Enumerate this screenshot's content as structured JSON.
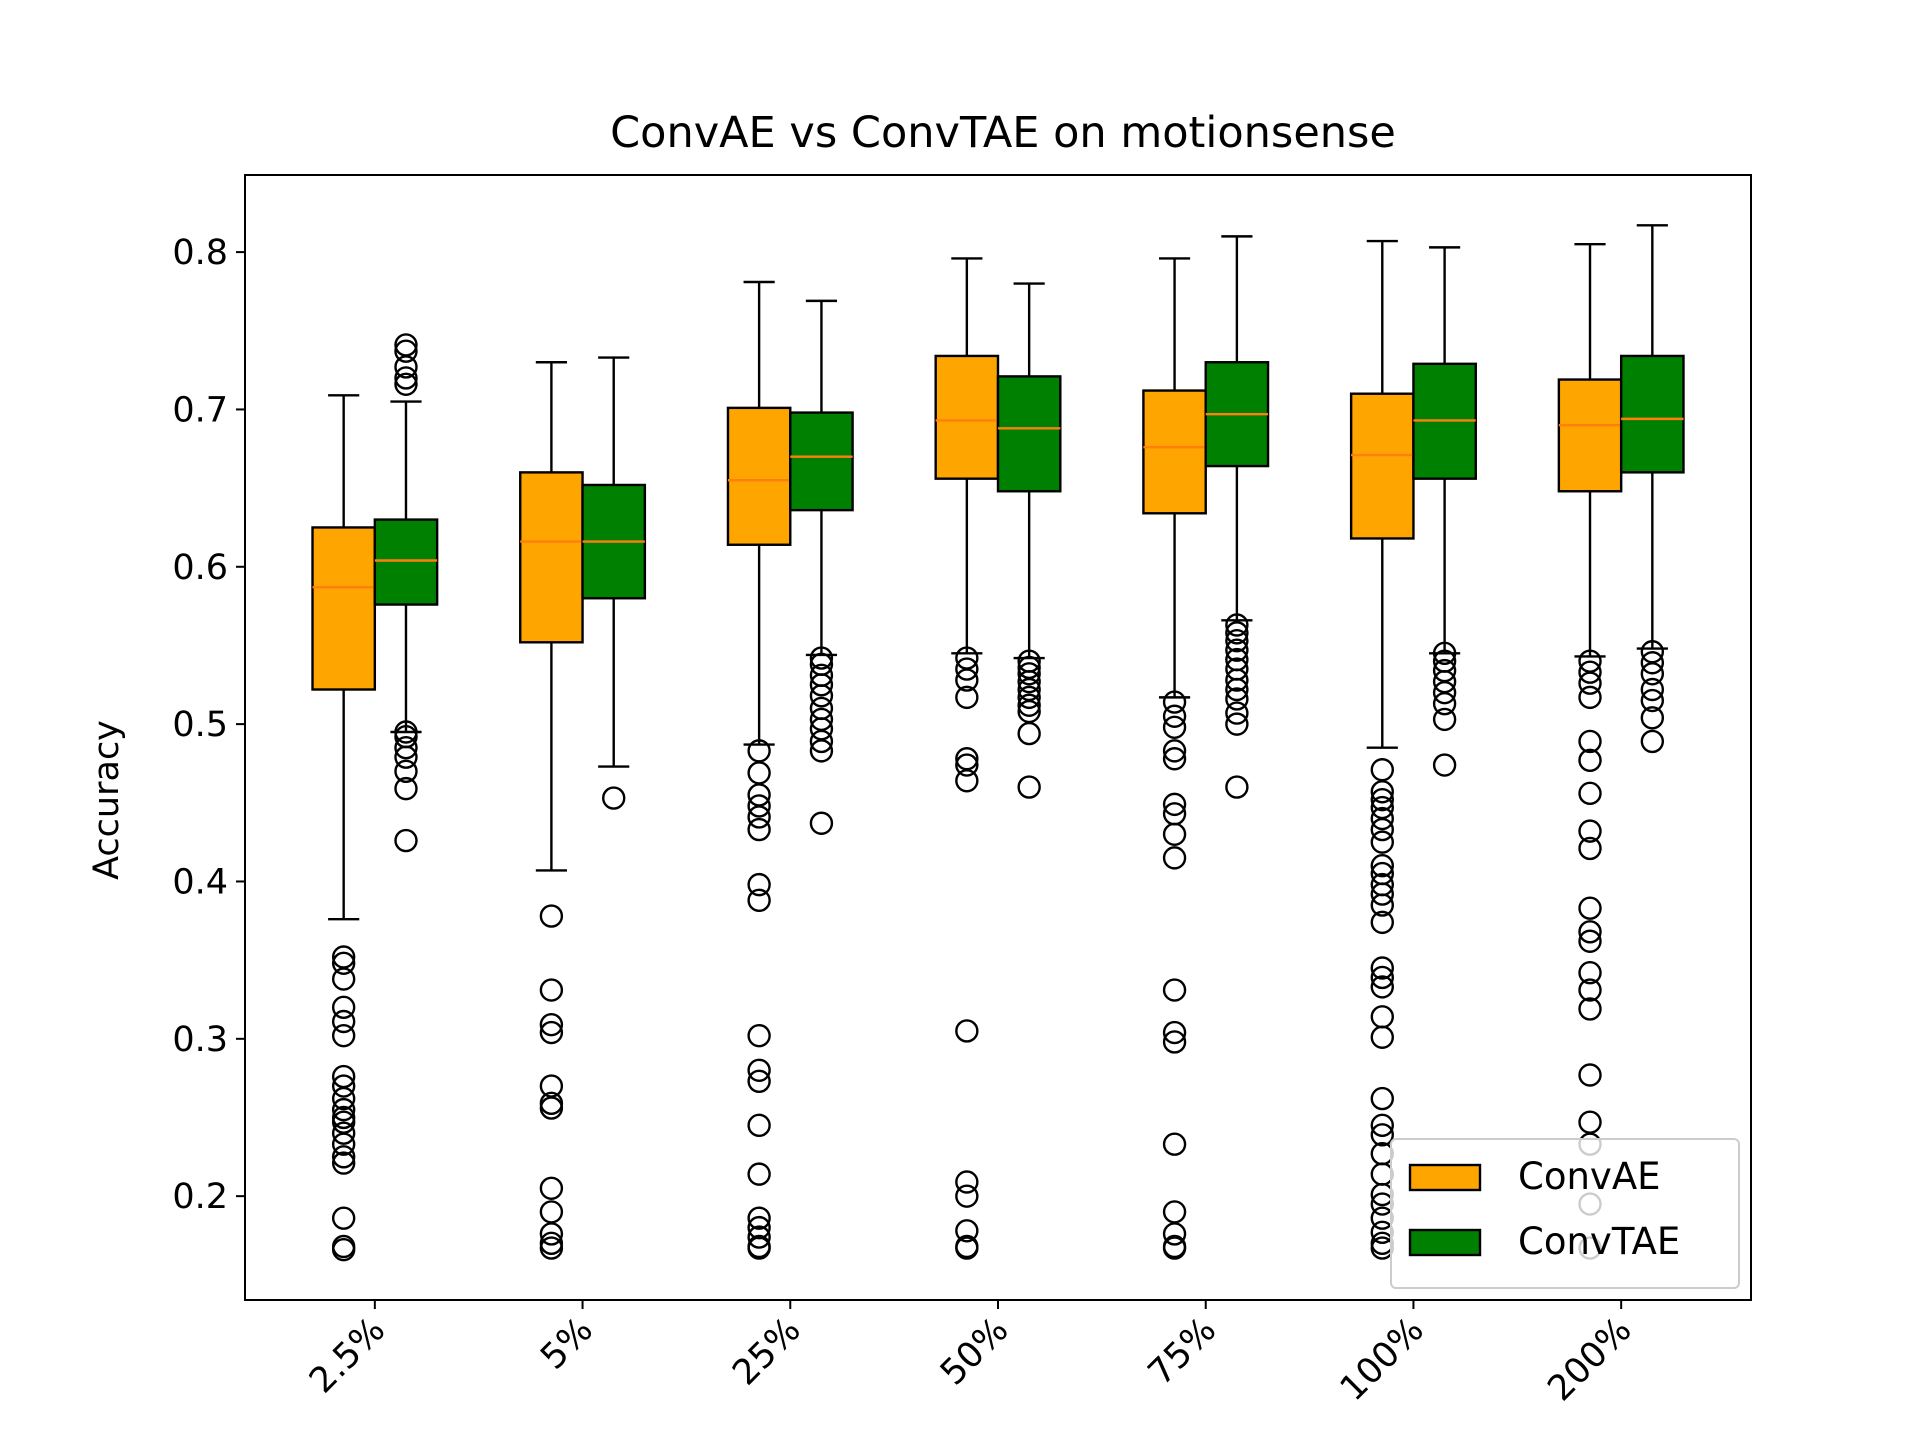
{
  "chart_data": {
    "type": "box",
    "title": "ConvAE vs ConvTAE on motionsense",
    "xlabel": "",
    "ylabel": "Accuracy",
    "categories": [
      "2.5%",
      "5%",
      "25%",
      "50%",
      "75%",
      "100%",
      "200%"
    ],
    "ylim": [
      0.134,
      0.849
    ],
    "yticks": [
      0.2,
      0.3,
      0.4,
      0.5,
      0.6,
      0.7,
      0.8
    ],
    "ytick_labels": [
      "0.2",
      "0.3",
      "0.4",
      "0.5",
      "0.6",
      "0.7",
      "0.8"
    ],
    "grid": false,
    "legend_position": "lower right",
    "colors": {
      "ConvAE": "#ffa500",
      "ConvTAE": "#008000",
      "median": "#ff7f0e",
      "axes": "#000000"
    },
    "series": [
      {
        "name": "ConvAE",
        "color": "#ffa500",
        "boxes": [
          {
            "whislo": 0.376,
            "q1": 0.522,
            "med": 0.587,
            "q3": 0.625,
            "whishi": 0.709,
            "fliers": [
              0.352,
              0.348,
              0.338,
              0.32,
              0.311,
              0.302,
              0.276,
              0.27,
              0.262,
              0.255,
              0.25,
              0.247,
              0.24,
              0.233,
              0.225,
              0.221,
              0.186,
              0.168,
              0.166
            ]
          },
          {
            "whislo": 0.407,
            "q1": 0.552,
            "med": 0.616,
            "q3": 0.66,
            "whishi": 0.73,
            "fliers": [
              0.378,
              0.331,
              0.309,
              0.304,
              0.27,
              0.259,
              0.256,
              0.205,
              0.19,
              0.176,
              0.17,
              0.167
            ]
          },
          {
            "whislo": 0.487,
            "q1": 0.614,
            "med": 0.655,
            "q3": 0.701,
            "whishi": 0.781,
            "fliers": [
              0.483,
              0.469,
              0.455,
              0.448,
              0.441,
              0.433,
              0.398,
              0.388,
              0.302,
              0.28,
              0.273,
              0.245,
              0.214,
              0.186,
              0.18,
              0.174,
              0.168,
              0.167
            ]
          },
          {
            "whislo": 0.545,
            "q1": 0.656,
            "med": 0.693,
            "q3": 0.734,
            "whishi": 0.796,
            "fliers": [
              0.542,
              0.535,
              0.528,
              0.517,
              0.478,
              0.474,
              0.464,
              0.305,
              0.209,
              0.2,
              0.178,
              0.168,
              0.167
            ]
          },
          {
            "whislo": 0.517,
            "q1": 0.634,
            "med": 0.676,
            "q3": 0.712,
            "whishi": 0.796,
            "fliers": [
              0.514,
              0.505,
              0.498,
              0.483,
              0.478,
              0.449,
              0.443,
              0.43,
              0.415,
              0.331,
              0.304,
              0.298,
              0.233,
              0.19,
              0.176,
              0.168,
              0.167
            ]
          },
          {
            "whislo": 0.485,
            "q1": 0.618,
            "med": 0.671,
            "q3": 0.71,
            "whishi": 0.807,
            "fliers": [
              0.471,
              0.457,
              0.452,
              0.447,
              0.44,
              0.433,
              0.425,
              0.41,
              0.405,
              0.398,
              0.392,
              0.385,
              0.374,
              0.345,
              0.339,
              0.333,
              0.314,
              0.301,
              0.262,
              0.245,
              0.239,
              0.227,
              0.214,
              0.201,
              0.195,
              0.186,
              0.177,
              0.17,
              0.167
            ]
          },
          {
            "whislo": 0.543,
            "q1": 0.648,
            "med": 0.69,
            "q3": 0.719,
            "whishi": 0.805,
            "fliers": [
              0.54,
              0.533,
              0.526,
              0.517,
              0.489,
              0.477,
              0.456,
              0.432,
              0.421,
              0.383,
              0.368,
              0.362,
              0.342,
              0.331,
              0.319,
              0.277,
              0.247,
              0.233,
              0.195,
              0.167
            ]
          }
        ]
      },
      {
        "name": "ConvTAE",
        "color": "#008000",
        "boxes": [
          {
            "whislo": 0.495,
            "q1": 0.576,
            "med": 0.604,
            "q3": 0.63,
            "whishi": 0.705,
            "fliers": [
              0.741,
              0.737,
              0.727,
              0.72,
              0.716,
              0.495,
              0.492,
              0.485,
              0.479,
              0.47,
              0.459,
              0.426
            ]
          },
          {
            "whislo": 0.473,
            "q1": 0.58,
            "med": 0.616,
            "q3": 0.652,
            "whishi": 0.733,
            "fliers": [
              0.453
            ]
          },
          {
            "whislo": 0.544,
            "q1": 0.636,
            "med": 0.67,
            "q3": 0.698,
            "whishi": 0.769,
            "fliers": [
              0.542,
              0.538,
              0.531,
              0.525,
              0.518,
              0.51,
              0.503,
              0.497,
              0.489,
              0.483,
              0.437
            ]
          },
          {
            "whislo": 0.542,
            "q1": 0.648,
            "med": 0.688,
            "q3": 0.721,
            "whishi": 0.78,
            "fliers": [
              0.54,
              0.536,
              0.532,
              0.527,
              0.522,
              0.517,
              0.512,
              0.508,
              0.494,
              0.46
            ]
          },
          {
            "whislo": 0.566,
            "q1": 0.664,
            "med": 0.697,
            "q3": 0.73,
            "whishi": 0.81,
            "fliers": [
              0.563,
              0.558,
              0.553,
              0.547,
              0.541,
              0.535,
              0.528,
              0.522,
              0.516,
              0.507,
              0.5,
              0.46
            ]
          },
          {
            "whislo": 0.545,
            "q1": 0.656,
            "med": 0.693,
            "q3": 0.729,
            "whishi": 0.803,
            "fliers": [
              0.545,
              0.54,
              0.534,
              0.527,
              0.52,
              0.513,
              0.503,
              0.474
            ]
          },
          {
            "whislo": 0.548,
            "q1": 0.66,
            "med": 0.694,
            "q3": 0.734,
            "whishi": 0.817,
            "fliers": [
              0.546,
              0.539,
              0.532,
              0.522,
              0.515,
              0.504,
              0.489
            ]
          }
        ]
      }
    ]
  }
}
